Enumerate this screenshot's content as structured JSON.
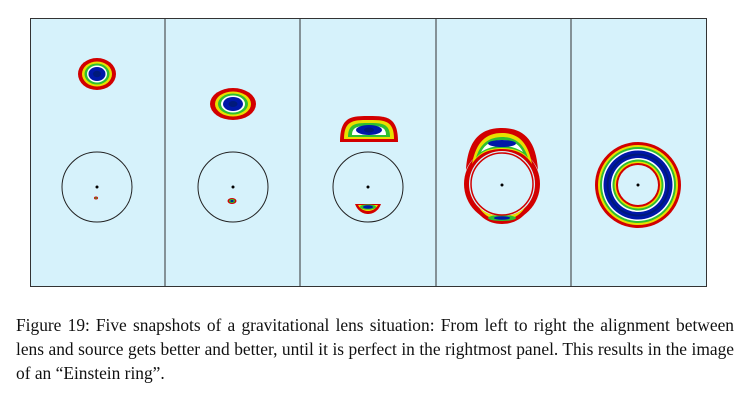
{
  "figure": {
    "panel_count": 5,
    "panel_background": "#d6f2fb",
    "border_color": "#333333",
    "contour_colors": {
      "outer": "#d20000",
      "yellow": "#e8e000",
      "green": "#2fbf2f",
      "white": "#ffffff",
      "blue": "#0018a8",
      "core": "#001a7a"
    }
  },
  "caption": {
    "label": "Figure 19:",
    "text": "Five snapshots of a gravitational lens situation: From left to right the alignment between lens and source gets better and better, until it is perfect in the rightmost panel. This results in the image of an “Einstein ring”."
  }
}
